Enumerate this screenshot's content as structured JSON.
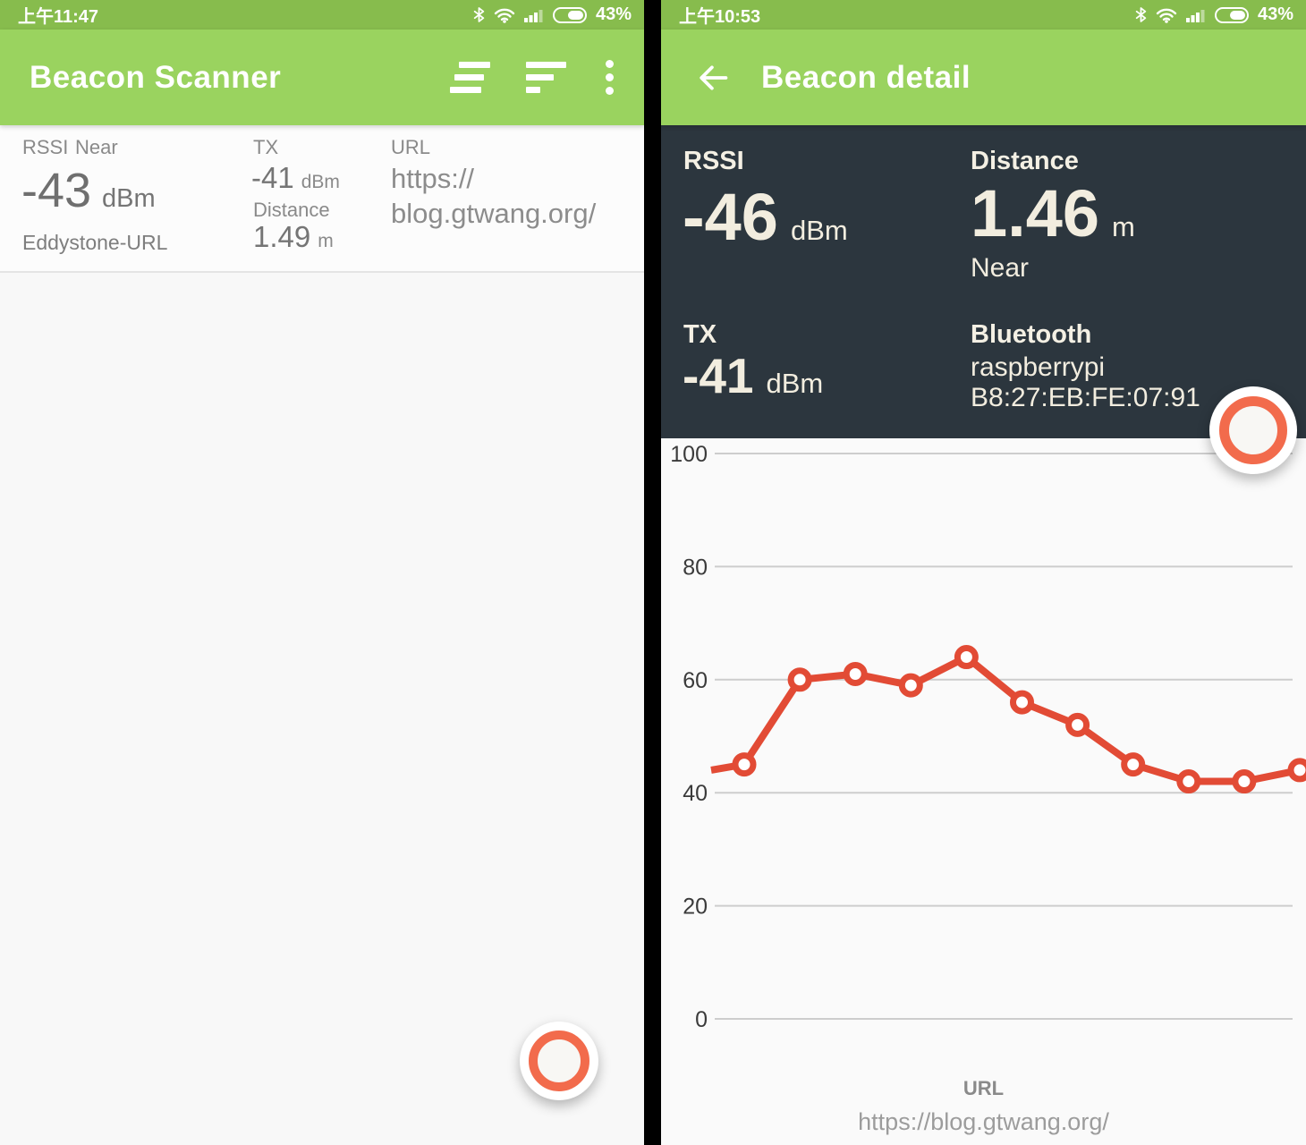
{
  "colors": {
    "status_bar_green": "#87BC4D",
    "app_bar_green": "#9AD35F",
    "panel_dark": "#2C363E",
    "panel_text_cream": "#F2EDDF",
    "chart_line_red": "#E24B35",
    "fab_ring_orange": "#F26B4C",
    "card_text_gray": "#6F6F6F",
    "label_gray": "#8A8A8A",
    "background": "#F8F8F8"
  },
  "left_screen": {
    "status_bar": {
      "time": "上午11:47",
      "battery_percent": "43%"
    },
    "app_bar": {
      "title": "Beacon Scanner",
      "action_icons": [
        "sort-staggered-lines-icon",
        "sort-descending-lines-icon",
        "overflow-menu-icon"
      ]
    },
    "beacon_card": {
      "rssi_label": "RSSI",
      "proximity": "Near",
      "rssi_value": "-43",
      "rssi_unit": "dBm",
      "beacon_type": "Eddystone-URL",
      "tx_label": "TX",
      "tx_value": "-41",
      "tx_unit": "dBm",
      "distance_label": "Distance",
      "distance_value": "1.49",
      "distance_unit": "m",
      "url_label": "URL",
      "url_value": "https://blog.gtwang.org/",
      "url_display": [
        "https://",
        "blog.gtwang.org/"
      ]
    },
    "fab": {
      "icon": "record-ring-icon"
    }
  },
  "right_screen": {
    "status_bar": {
      "time": "上午10:53",
      "battery_percent": "43%"
    },
    "app_bar": {
      "title": "Beacon detail",
      "back_icon": "arrow-left-icon"
    },
    "detail_panel": {
      "rssi_label": "RSSI",
      "rssi_value": "-46",
      "rssi_unit": "dBm",
      "distance_label": "Distance",
      "distance_value": "1.46",
      "distance_unit": "m",
      "proximity": "Near",
      "tx_label": "TX",
      "tx_value": "-41",
      "tx_unit": "dBm",
      "bluetooth_label": "Bluetooth",
      "bluetooth_device_name": "raspberrypi",
      "bluetooth_mac": "B8:27:EB:FE:07:91"
    },
    "fab": {
      "icon": "record-ring-icon"
    },
    "footer": {
      "url_label": "URL",
      "url_value": "https://blog.gtwang.org/"
    }
  },
  "chart_data": {
    "type": "line",
    "title": "",
    "xlabel": "",
    "ylabel": "",
    "x": [
      0,
      1,
      2,
      3,
      4,
      5,
      6,
      7,
      8,
      9,
      10,
      11
    ],
    "values": [
      44,
      45,
      60,
      61,
      59,
      64,
      56,
      52,
      45,
      42,
      42,
      44
    ],
    "y_ticks": [
      0,
      20,
      40,
      60,
      80,
      100
    ],
    "ylim": [
      0,
      100
    ],
    "grid": true,
    "legend": false,
    "line_color": "#E24B35",
    "marker": "open-circle",
    "marker_fill": "#FFFFFF",
    "grid_color": "#CDCDCD",
    "tick_color": "#3B3B3B",
    "first_point_clipped": true
  }
}
